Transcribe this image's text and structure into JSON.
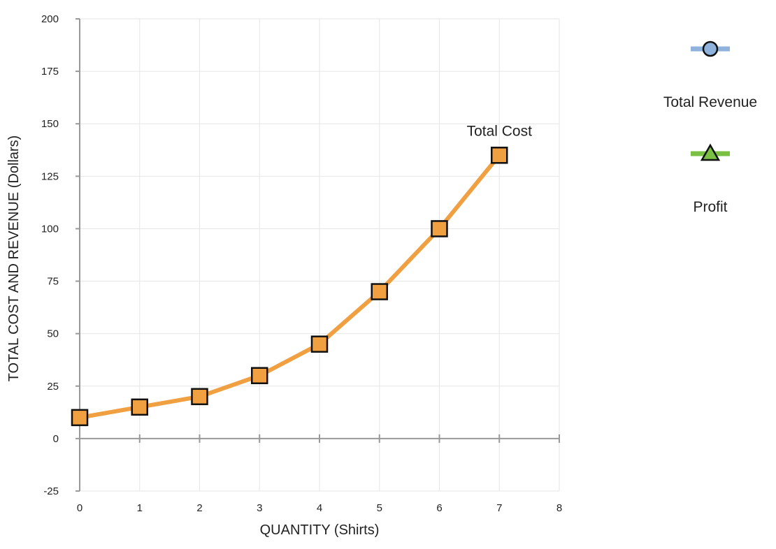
{
  "chart_data": {
    "type": "line",
    "xlabel": "QUANTITY (Shirts)",
    "ylabel": "TOTAL COST AND REVENUE (Dollars)",
    "xlim": [
      0,
      8
    ],
    "ylim": [
      -25,
      200
    ],
    "x_ticks": [
      "0",
      "1",
      "2",
      "3",
      "4",
      "5",
      "6",
      "7",
      "8"
    ],
    "y_ticks": [
      "200",
      "175",
      "150",
      "125",
      "100",
      "75",
      "50",
      "25",
      "0",
      "-25"
    ],
    "grid": true,
    "series": [
      {
        "name": "Total Cost",
        "color": "#f0a040",
        "marker": "square",
        "x": [
          0,
          1,
          2,
          3,
          4,
          5,
          6,
          7
        ],
        "y": [
          10,
          15,
          20,
          30,
          45,
          70,
          100,
          135
        ]
      }
    ],
    "legend": {
      "placement": "right",
      "items": [
        {
          "label": "Total Revenue",
          "color": "#8fb3dc",
          "marker": "circle"
        },
        {
          "label": "Profit",
          "color": "#7ac143",
          "marker": "triangle"
        }
      ]
    }
  }
}
